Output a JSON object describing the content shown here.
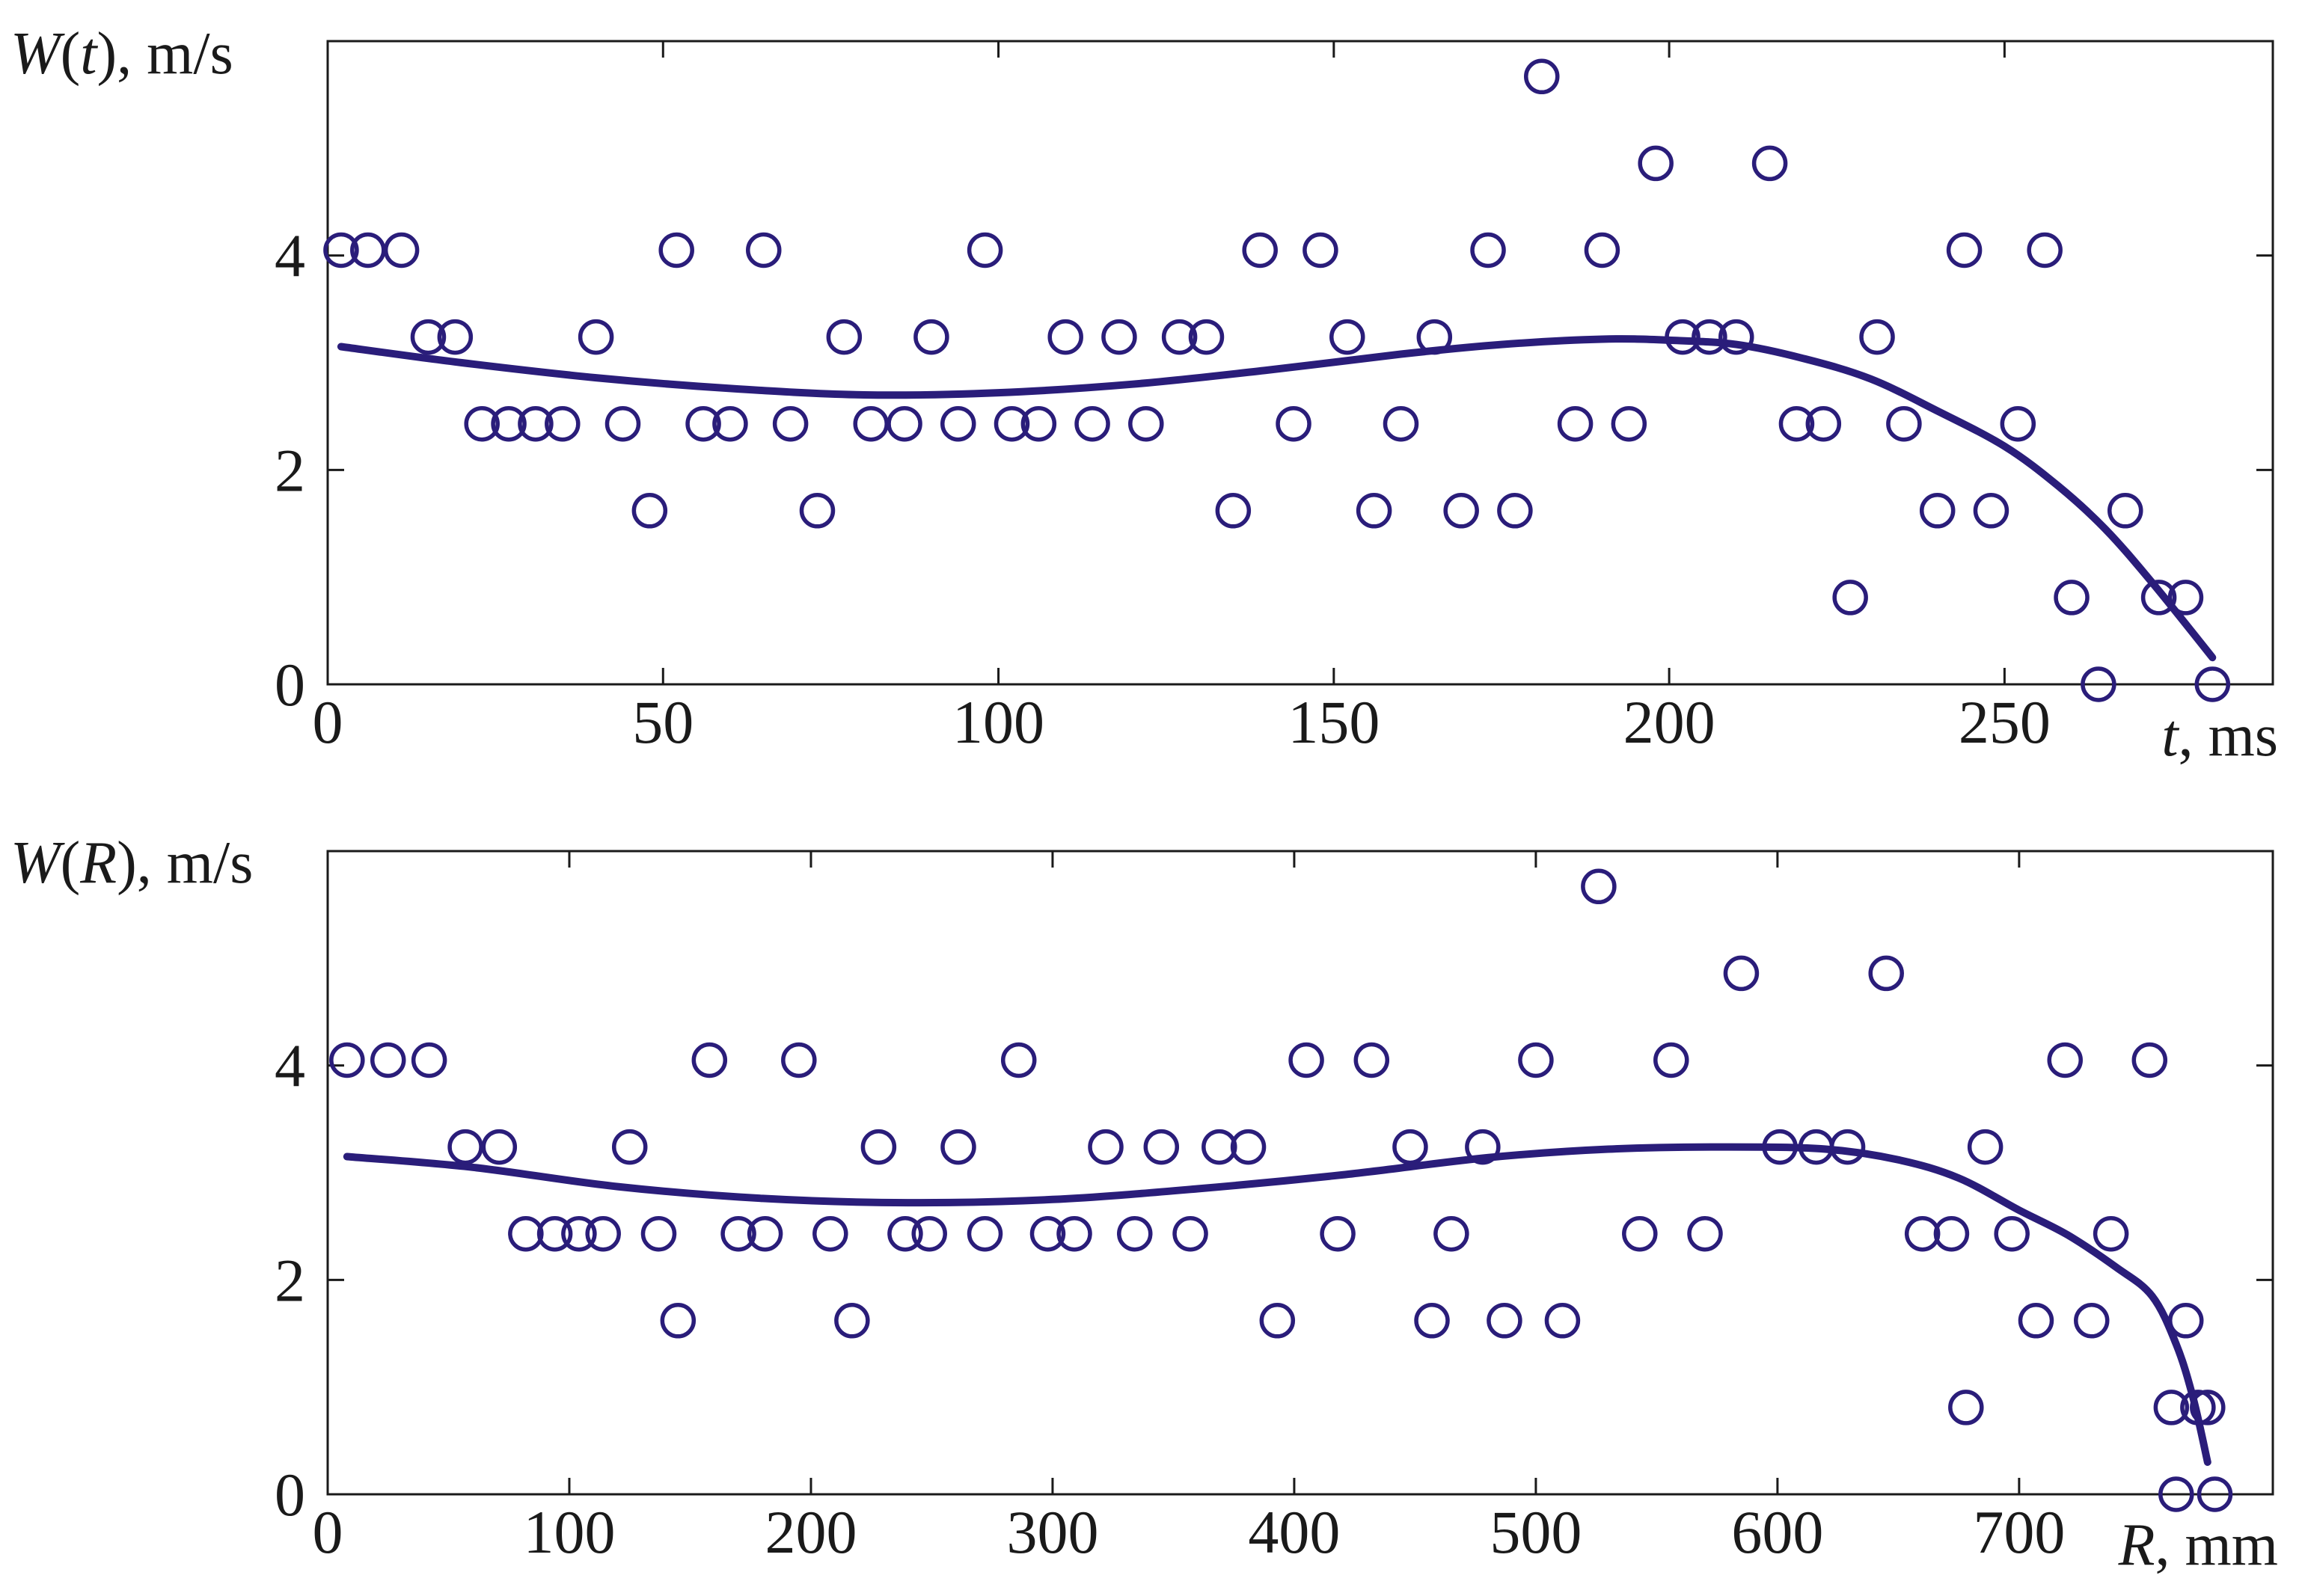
{
  "colors": {
    "marker": "#2a1d7a",
    "curve": "#2a1d7a",
    "axes": "#1a1a1a"
  },
  "chart_data": [
    {
      "type": "scatter",
      "title": "",
      "ylabel_parts": [
        "W",
        "(",
        "t",
        "), m/s"
      ],
      "xlabel_parts": [
        "t",
        ", ms"
      ],
      "xlim": [
        0,
        290
      ],
      "ylim": [
        0,
        6
      ],
      "xticks": [
        0,
        50,
        100,
        150,
        200,
        250
      ],
      "yticks": [
        0,
        2,
        4
      ],
      "grid": false,
      "marker": "circle-open",
      "points": [
        [
          2,
          4.05
        ],
        [
          6,
          4.05
        ],
        [
          11,
          4.05
        ],
        [
          15,
          3.24
        ],
        [
          19,
          3.24
        ],
        [
          23,
          2.43
        ],
        [
          27,
          2.43
        ],
        [
          31,
          2.43
        ],
        [
          35,
          2.43
        ],
        [
          40,
          3.24
        ],
        [
          44,
          2.43
        ],
        [
          48,
          1.62
        ],
        [
          52,
          4.05
        ],
        [
          56,
          2.43
        ],
        [
          60,
          2.43
        ],
        [
          65,
          4.05
        ],
        [
          69,
          2.43
        ],
        [
          73,
          1.62
        ],
        [
          77,
          3.24
        ],
        [
          81,
          2.43
        ],
        [
          86,
          2.43
        ],
        [
          90,
          3.24
        ],
        [
          94,
          2.43
        ],
        [
          98,
          4.05
        ],
        [
          102,
          2.43
        ],
        [
          106,
          2.43
        ],
        [
          110,
          3.24
        ],
        [
          114,
          2.43
        ],
        [
          118,
          3.24
        ],
        [
          122,
          2.43
        ],
        [
          127,
          3.24
        ],
        [
          131,
          3.24
        ],
        [
          135,
          1.62
        ],
        [
          139,
          4.05
        ],
        [
          144,
          2.43
        ],
        [
          148,
          4.05
        ],
        [
          152,
          3.24
        ],
        [
          156,
          1.62
        ],
        [
          160,
          2.43
        ],
        [
          165,
          3.24
        ],
        [
          169,
          1.62
        ],
        [
          173,
          4.05
        ],
        [
          177,
          1.62
        ],
        [
          181,
          5.67
        ],
        [
          186,
          2.43
        ],
        [
          190,
          4.05
        ],
        [
          194,
          2.43
        ],
        [
          198,
          4.86
        ],
        [
          202,
          3.24
        ],
        [
          206,
          3.24
        ],
        [
          210,
          3.24
        ],
        [
          215,
          4.86
        ],
        [
          219,
          2.43
        ],
        [
          223,
          2.43
        ],
        [
          227,
          0.81
        ],
        [
          231,
          3.24
        ],
        [
          235,
          2.43
        ],
        [
          240,
          1.62
        ],
        [
          244,
          4.05
        ],
        [
          248,
          1.62
        ],
        [
          252,
          2.43
        ],
        [
          256,
          4.05
        ],
        [
          260,
          0.81
        ],
        [
          264,
          0
        ],
        [
          268,
          1.62
        ],
        [
          273,
          0.81
        ],
        [
          277,
          0.81
        ],
        [
          281,
          0
        ]
      ],
      "curve": [
        [
          2,
          3.15
        ],
        [
          20,
          3.0
        ],
        [
          40,
          2.86
        ],
        [
          60,
          2.76
        ],
        [
          80,
          2.7
        ],
        [
          100,
          2.72
        ],
        [
          120,
          2.8
        ],
        [
          140,
          2.93
        ],
        [
          160,
          3.08
        ],
        [
          175,
          3.17
        ],
        [
          190,
          3.22
        ],
        [
          200,
          3.21
        ],
        [
          210,
          3.17
        ],
        [
          220,
          3.04
        ],
        [
          230,
          2.85
        ],
        [
          240,
          2.55
        ],
        [
          250,
          2.22
        ],
        [
          258,
          1.85
        ],
        [
          265,
          1.45
        ],
        [
          272,
          0.95
        ],
        [
          281,
          0.25
        ]
      ]
    },
    {
      "type": "scatter",
      "title": "",
      "ylabel_parts": [
        "W",
        "(",
        "R",
        "), m/s"
      ],
      "xlabel_parts": [
        "R",
        ", mm"
      ],
      "xlim": [
        0,
        805
      ],
      "ylim": [
        0,
        6
      ],
      "xticks": [
        0,
        100,
        200,
        300,
        400,
        500,
        600,
        700
      ],
      "yticks": [
        0,
        2,
        4
      ],
      "grid": false,
      "marker": "circle-open",
      "points": [
        [
          8,
          4.05
        ],
        [
          25,
          4.05
        ],
        [
          42,
          4.05
        ],
        [
          57,
          3.24
        ],
        [
          71,
          3.24
        ],
        [
          82,
          2.43
        ],
        [
          94,
          2.43
        ],
        [
          104,
          2.43
        ],
        [
          114,
          2.43
        ],
        [
          125,
          3.24
        ],
        [
          137,
          2.43
        ],
        [
          145,
          1.62
        ],
        [
          158,
          4.05
        ],
        [
          170,
          2.43
        ],
        [
          181,
          2.43
        ],
        [
          195,
          4.05
        ],
        [
          208,
          2.43
        ],
        [
          217,
          1.62
        ],
        [
          228,
          3.24
        ],
        [
          239,
          2.43
        ],
        [
          249,
          2.43
        ],
        [
          261,
          3.24
        ],
        [
          272,
          2.43
        ],
        [
          286,
          4.05
        ],
        [
          298,
          2.43
        ],
        [
          309,
          2.43
        ],
        [
          322,
          3.24
        ],
        [
          334,
          2.43
        ],
        [
          345,
          3.24
        ],
        [
          357,
          2.43
        ],
        [
          369,
          3.24
        ],
        [
          381,
          3.24
        ],
        [
          393,
          1.62
        ],
        [
          405,
          4.05
        ],
        [
          418,
          2.43
        ],
        [
          432,
          4.05
        ],
        [
          448,
          3.24
        ],
        [
          457,
          1.62
        ],
        [
          465,
          2.43
        ],
        [
          478,
          3.24
        ],
        [
          487,
          1.62
        ],
        [
          500,
          4.05
        ],
        [
          511,
          1.62
        ],
        [
          526,
          5.67
        ],
        [
          543,
          2.43
        ],
        [
          556,
          4.05
        ],
        [
          570,
          2.43
        ],
        [
          585,
          4.86
        ],
        [
          601,
          3.24
        ],
        [
          616,
          3.24
        ],
        [
          629,
          3.24
        ],
        [
          645,
          4.86
        ],
        [
          660,
          2.43
        ],
        [
          672,
          2.43
        ],
        [
          678,
          0.81
        ],
        [
          686,
          3.24
        ],
        [
          697,
          2.43
        ],
        [
          707,
          1.62
        ],
        [
          719,
          4.05
        ],
        [
          730,
          1.62
        ],
        [
          738,
          2.43
        ],
        [
          754,
          4.05
        ],
        [
          763,
          0.81
        ],
        [
          765,
          0
        ],
        [
          769,
          1.62
        ],
        [
          774,
          0.81
        ],
        [
          778,
          0.81
        ],
        [
          781,
          0
        ]
      ],
      "curve": [
        [
          8,
          3.15
        ],
        [
          60,
          3.05
        ],
        [
          120,
          2.87
        ],
        [
          180,
          2.76
        ],
        [
          240,
          2.72
        ],
        [
          300,
          2.75
        ],
        [
          360,
          2.85
        ],
        [
          420,
          2.98
        ],
        [
          480,
          3.14
        ],
        [
          530,
          3.22
        ],
        [
          580,
          3.24
        ],
        [
          620,
          3.22
        ],
        [
          650,
          3.12
        ],
        [
          675,
          2.95
        ],
        [
          700,
          2.65
        ],
        [
          720,
          2.42
        ],
        [
          740,
          2.12
        ],
        [
          755,
          1.85
        ],
        [
          765,
          1.4
        ],
        [
          772,
          0.9
        ],
        [
          778,
          0.3
        ]
      ]
    }
  ]
}
